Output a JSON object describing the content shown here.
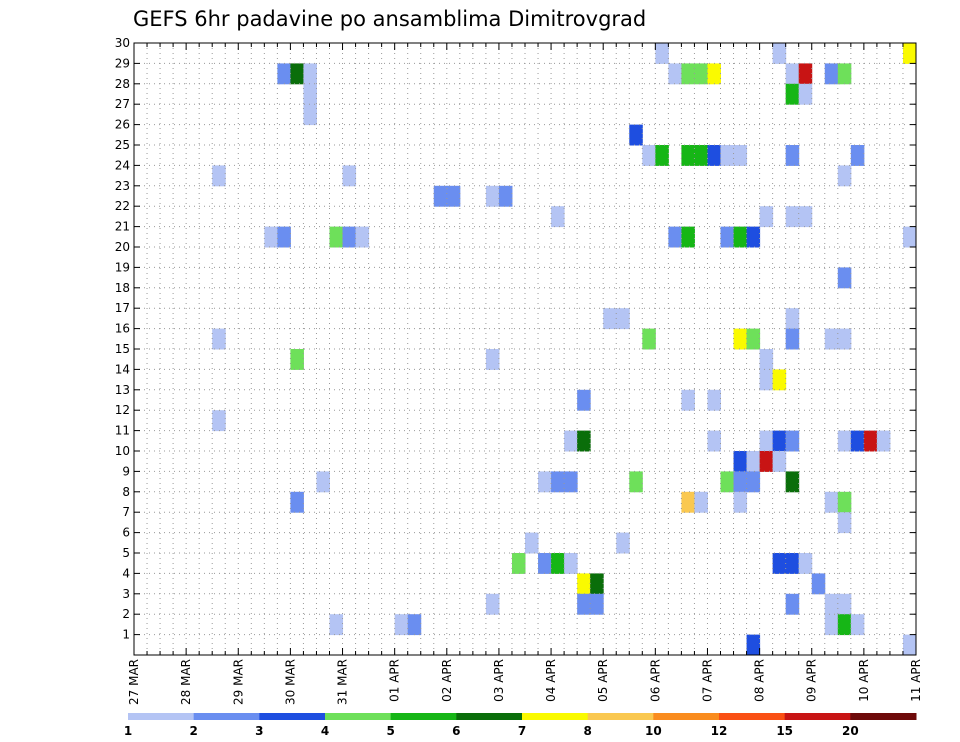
{
  "chart_data": {
    "type": "heatmap",
    "title": "GEFS 6hr padavine po ansamblima Dimitrovgrad",
    "x_tick_labels": [
      "27 MAR",
      "28 MAR",
      "29 MAR",
      "30 MAR",
      "31 MAR",
      "01 APR",
      "02 APR",
      "03 APR",
      "04 APR",
      "05 APR",
      "06 APR",
      "07 APR",
      "08 APR",
      "09 APR",
      "10 APR",
      "11 APR"
    ],
    "x_range_steps": [
      0,
      60
    ],
    "steps_per_day": 4,
    "y_range": [
      0,
      30
    ],
    "y_ticks": [
      1,
      2,
      3,
      4,
      5,
      6,
      7,
      8,
      9,
      10,
      11,
      12,
      13,
      14,
      15,
      16,
      17,
      18,
      19,
      20,
      21,
      22,
      23,
      24,
      25,
      26,
      27,
      28,
      29,
      30
    ],
    "grid": true,
    "colorbar": {
      "labels": [
        "1",
        "2",
        "3",
        "4",
        "5",
        "6",
        "7",
        "8",
        "10",
        "12",
        "15",
        "20"
      ],
      "colors": [
        "#b4c4f4",
        "#6a8ef0",
        "#1e4ee0",
        "#6ee05a",
        "#16b616",
        "#0a6e0a",
        "#fafa00",
        "#fac850",
        "#fa8c1e",
        "#fa5014",
        "#c81414",
        "#6e0a0a"
      ]
    },
    "cells": [
      [
        57,
        1,
        "#b4c4f4"
      ],
      [
        58,
        1,
        "#b4c4f4"
      ],
      [
        59,
        1,
        "#b4c4f4"
      ],
      [
        60,
        1,
        "#b4c4f4"
      ],
      [
        0,
        1,
        "#b4c4f4"
      ],
      [
        1,
        1,
        "#b4c4f4"
      ],
      [
        2,
        1,
        "#b4c4f4"
      ],
      [
        3,
        1,
        "#b4c4f4"
      ],
      [
        4,
        1,
        "#b4c4f4"
      ],
      [
        5,
        1,
        "#b4c4f4"
      ],
      [
        6,
        1,
        "#b4c4f4"
      ],
      [
        7,
        1,
        "#b4c4f4"
      ],
      [
        8,
        1,
        "#b4c4f4"
      ],
      [
        9,
        1,
        "#b4c4f4"
      ],
      [
        10,
        1,
        "#b4c4f4"
      ],
      [
        11,
        1,
        "#b4c4f4"
      ],
      [
        12,
        1,
        "#b4c4f4"
      ],
      [
        13,
        1,
        "#b4c4f4"
      ],
      [
        14,
        1,
        "#b4c4f4"
      ],
      [
        15,
        1,
        "#b4c4f4"
      ],
      [
        16,
        1,
        "#b4c4f4"
      ],
      [
        17,
        1,
        "#b4c4f4"
      ],
      [
        18,
        1,
        "#b4c4f4"
      ],
      [
        19,
        1,
        "#b4c4f4"
      ],
      [
        20,
        1,
        "#b4c4f4"
      ],
      [
        21,
        1,
        "#b4c4f4"
      ],
      [
        22,
        1,
        "#b4c4f4"
      ],
      [
        23,
        1,
        "#b4c4f4"
      ],
      [
        24,
        1,
        "#b4c4f4"
      ],
      [
        25,
        1,
        "#b4c4f4"
      ],
      [
        26,
        1,
        "#b4c4f4"
      ],
      [
        27,
        1,
        "#b4c4f4"
      ],
      [
        28,
        1,
        "#b4c4f4"
      ],
      [
        29,
        1,
        "#b4c4f4"
      ],
      [
        30,
        1,
        "#b4c4f4"
      ],
      [
        31,
        1,
        "#b4c4f4"
      ],
      [
        32,
        1,
        "#b4c4f4"
      ],
      [
        33,
        1,
        "#b4c4f4"
      ],
      [
        34,
        1,
        "#b4c4f4"
      ],
      [
        35,
        1,
        "#b4c4f4"
      ],
      [
        36,
        1,
        "#b4c4f4"
      ],
      [
        37,
        1,
        "#b4c4f4"
      ],
      [
        38,
        1,
        "#b4c4f4"
      ],
      [
        39,
        1,
        "#b4c4f4"
      ],
      [
        40,
        1,
        "#b4c4f4"
      ],
      [
        41,
        1,
        "#b4c4f4"
      ],
      [
        42,
        1,
        "#b4c4f4"
      ],
      [
        43,
        1,
        "#b4c4f4"
      ],
      [
        44,
        1,
        "#b4c4f4"
      ],
      [
        45,
        1,
        "#b4c4f4"
      ],
      [
        46,
        1,
        "#b4c4f4"
      ],
      [
        47,
        1,
        "#b4c4f4"
      ],
      [
        48,
        1,
        "#b4c4f4"
      ],
      [
        49,
        1,
        "#b4c4f4"
      ],
      [
        50,
        1,
        "#b4c4f4"
      ],
      [
        51,
        1,
        "#b4c4f4"
      ],
      [
        52,
        1,
        "#b4c4f4"
      ],
      [
        53,
        1,
        "#b4c4f4"
      ],
      [
        54,
        1,
        "#b4c4f4"
      ],
      [
        55,
        1,
        "#b4c4f4"
      ],
      [
        56,
        1,
        "#b4c4f4"
      ]
    ]
  }
}
